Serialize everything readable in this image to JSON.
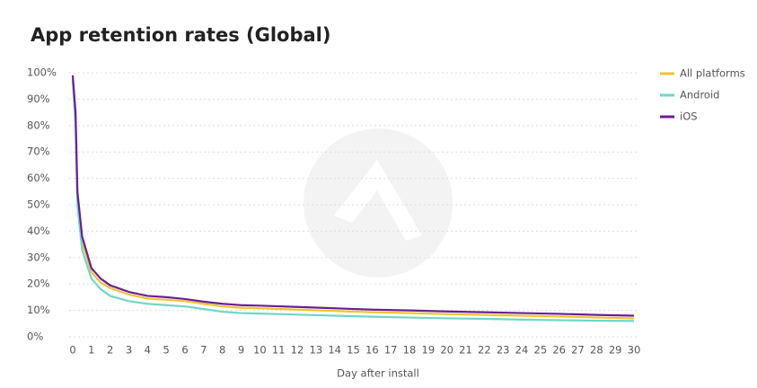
{
  "chart_data": {
    "type": "line",
    "title": "App retention rates (Global)",
    "x_label": "Day after install",
    "x": [
      0,
      0.15,
      0.25,
      0.5,
      1,
      1.5,
      2,
      3,
      4,
      5,
      6,
      7,
      8,
      9,
      10,
      12,
      14,
      16,
      18,
      20,
      22,
      24,
      26,
      28,
      30
    ],
    "series": [
      {
        "name": "All platforms",
        "color": "#f0c330",
        "values": [
          98,
          83,
          53,
          36,
          24.5,
          20.5,
          18.5,
          16,
          14.5,
          14,
          13.5,
          12.5,
          11.5,
          11,
          10.8,
          10.3,
          9.8,
          9.3,
          9,
          8.6,
          8.3,
          8,
          7.7,
          7.3,
          7
        ]
      },
      {
        "name": "Android",
        "color": "#6fd6c8",
        "values": [
          97,
          80,
          50,
          33,
          22,
          18,
          15.5,
          13.5,
          12.5,
          12,
          11.5,
          10.5,
          9.5,
          9,
          8.8,
          8.4,
          8,
          7.6,
          7.3,
          7,
          6.8,
          6.5,
          6.3,
          6.1,
          6
        ]
      },
      {
        "name": "iOS",
        "color": "#6a1f96",
        "values": [
          99,
          85,
          55,
          38,
          26,
          22,
          19.5,
          17,
          15.5,
          15,
          14.3,
          13.3,
          12.5,
          12,
          11.8,
          11.3,
          10.8,
          10.3,
          10,
          9.6,
          9.3,
          9,
          8.7,
          8.3,
          8
        ]
      }
    ],
    "xlim": [
      0,
      30
    ],
    "xticks": [
      0,
      1,
      2,
      3,
      4,
      5,
      6,
      7,
      8,
      9,
      10,
      11,
      12,
      13,
      14,
      15,
      16,
      17,
      18,
      19,
      20,
      21,
      22,
      23,
      24,
      25,
      26,
      27,
      28,
      29,
      30
    ],
    "ylim": [
      0,
      100
    ],
    "yticks": [
      {
        "value": 0,
        "label": "0%"
      },
      {
        "value": 10,
        "label": "10%"
      },
      {
        "value": 20,
        "label": "20%"
      },
      {
        "value": 30,
        "label": "30%"
      },
      {
        "value": 40,
        "label": "40%"
      },
      {
        "value": 50,
        "label": "50%"
      },
      {
        "value": 60,
        "label": "60%"
      },
      {
        "value": 70,
        "label": "70%"
      },
      {
        "value": 80,
        "label": "80%"
      },
      {
        "value": 90,
        "label": "90%"
      },
      {
        "value": 100,
        "label": "100%"
      }
    ],
    "grid": true,
    "legend": "top-right"
  }
}
